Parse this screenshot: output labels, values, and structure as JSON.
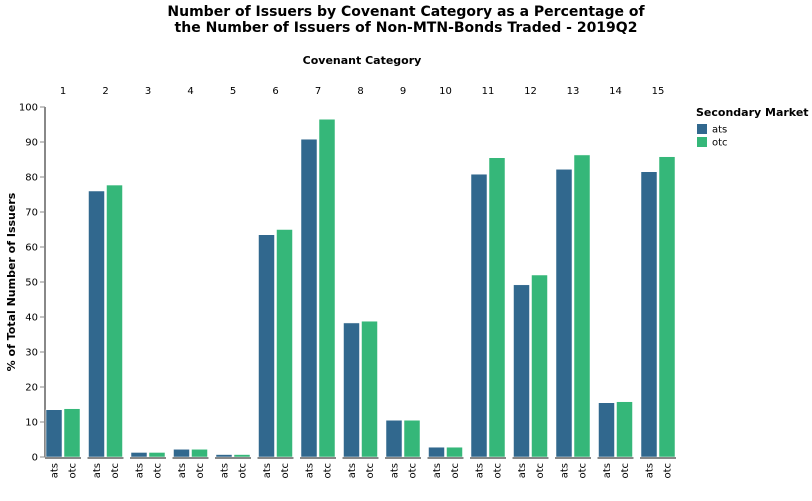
{
  "chart_data": {
    "type": "bar",
    "title_line1": "Number of Issuers by Covenant Category as a Percentage of",
    "title_line2": "the Number of Issuers of Non-MTN-Bonds Traded - 2019Q2",
    "facet_title": "Covenant Category",
    "ylabel": "% of Total Number of Issuers",
    "ylim": [
      0,
      100
    ],
    "yticks": [
      0,
      10,
      20,
      30,
      40,
      50,
      60,
      70,
      80,
      90,
      100
    ],
    "categories": [
      "1",
      "2",
      "3",
      "4",
      "5",
      "6",
      "7",
      "8",
      "9",
      "10",
      "11",
      "12",
      "13",
      "14",
      "15"
    ],
    "legend": {
      "title": "Secondary Market",
      "placement": "right"
    },
    "series": [
      {
        "name": "ats",
        "color": "#31688e",
        "values": [
          13.5,
          76,
          1.3,
          2.2,
          0.7,
          63.5,
          90.8,
          38.3,
          10.5,
          2.8,
          80.8,
          49.2,
          82.2,
          15.5,
          81.5
        ]
      },
      {
        "name": "otc",
        "color": "#35b779",
        "values": [
          13.8,
          77.7,
          1.3,
          2.2,
          0.7,
          65,
          96.5,
          38.8,
          10.5,
          2.8,
          85.5,
          52,
          86.3,
          15.8,
          85.8
        ]
      }
    ],
    "grid": false
  }
}
